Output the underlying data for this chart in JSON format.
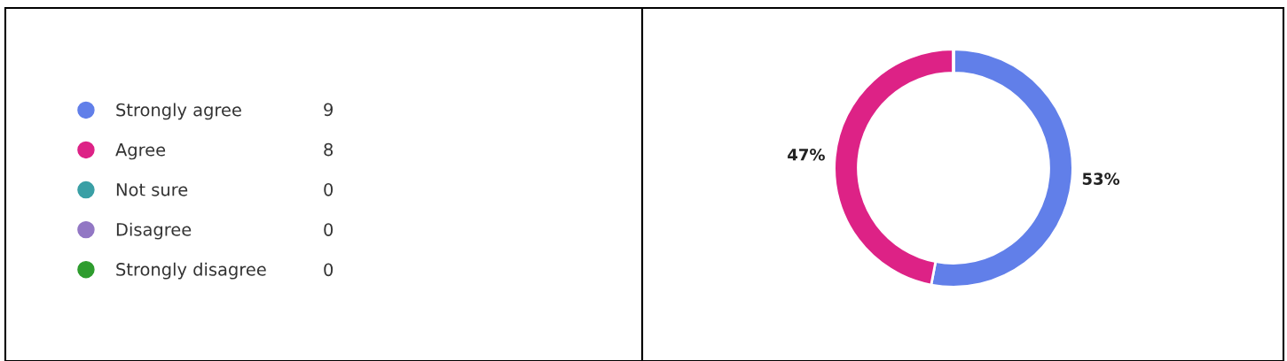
{
  "chart_data": {
    "type": "donut",
    "categories": [
      "Strongly agree",
      "Agree",
      "Not sure",
      "Disagree",
      "Strongly disagree"
    ],
    "values": [
      53,
      47,
      0,
      0,
      0
    ],
    "colors": [
      "#617fe9",
      "#dd2286",
      "#3a9fa5",
      "#9277c4",
      "#2e9c2e"
    ],
    "value_labels": [
      "53%",
      "47%",
      null,
      null,
      null
    ],
    "annotations": [
      "9",
      "8",
      "0",
      "0",
      "0"
    ],
    "legend": "left"
  }
}
